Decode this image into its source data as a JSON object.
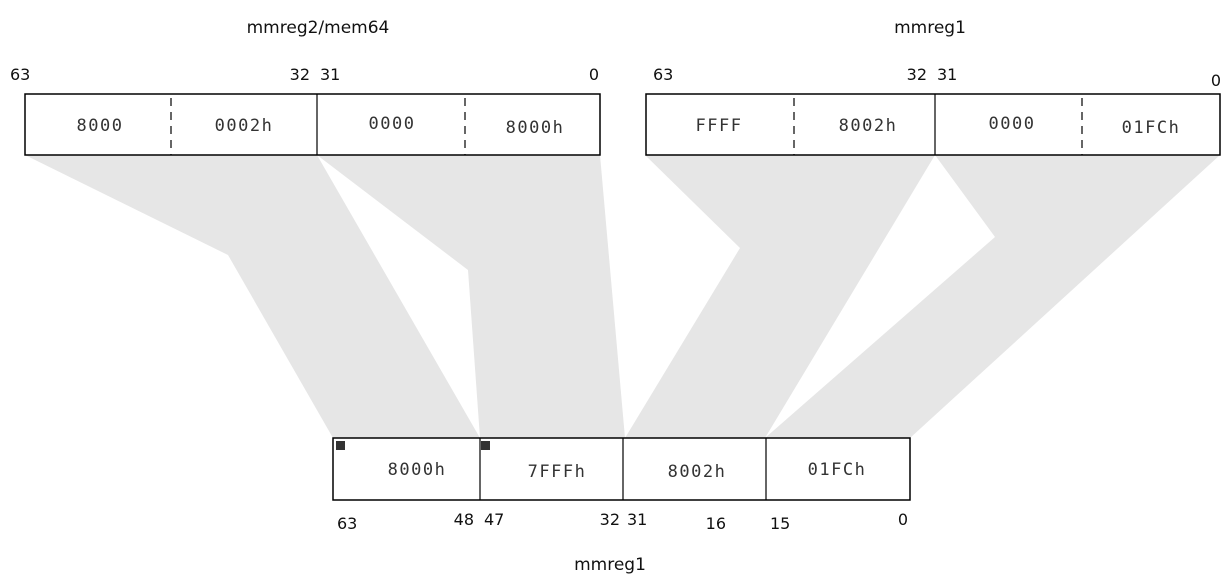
{
  "labels": {
    "source_left": "mmreg2/mem64",
    "source_right": "mmreg1",
    "result": "mmreg1"
  },
  "source_left": {
    "bits": [
      "63",
      "32",
      "31",
      "0"
    ],
    "fields": [
      "8000",
      "0002h",
      "0000",
      "8000h"
    ]
  },
  "source_right": {
    "bits": [
      "63",
      "32",
      "31",
      "0"
    ],
    "fields": [
      "FFFF",
      "8002h",
      "0000",
      "01FCh"
    ]
  },
  "result": {
    "bits": [
      "63",
      "48",
      "47",
      "32",
      "31",
      "16",
      "15",
      "0"
    ],
    "fields": [
      "8000h",
      "7FFFh",
      "8002h",
      "01FCh"
    ]
  },
  "colors": {
    "band": "#e6e6e6",
    "saturation_marker": "#333333"
  }
}
